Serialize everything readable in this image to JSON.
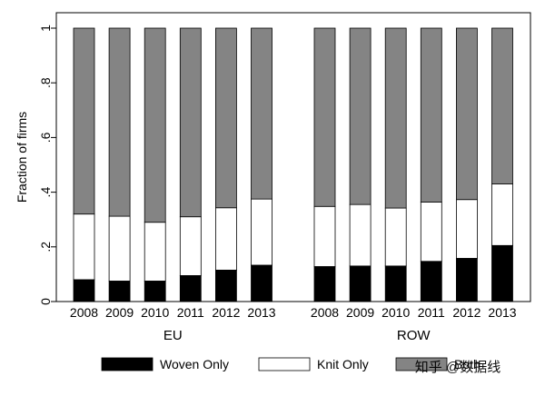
{
  "chart_data": {
    "type": "bar",
    "subtype": "stacked-100",
    "ylabel": "Fraction of firms",
    "ylim": [
      0,
      1
    ],
    "yticks": [
      0,
      0.2,
      0.4,
      0.6,
      0.8,
      1
    ],
    "ytick_labels": [
      "0",
      ".2",
      ".4",
      ".6",
      ".8",
      "1"
    ],
    "grid": false,
    "legend_position": "bottom",
    "groups": [
      {
        "name": "EU",
        "categories": [
          "2008",
          "2009",
          "2010",
          "2011",
          "2012",
          "2013"
        ],
        "series": [
          {
            "name": "Woven Only",
            "color": "#000000",
            "values": [
              0.08,
              0.075,
              0.075,
              0.095,
              0.115,
              0.133
            ]
          },
          {
            "name": "Knit Only",
            "color": "#ffffff",
            "values": [
              0.24,
              0.237,
              0.215,
              0.215,
              0.228,
              0.242
            ]
          },
          {
            "name": "Both",
            "color": "#848484",
            "values": [
              0.68,
              0.688,
              0.71,
              0.69,
              0.657,
              0.625
            ]
          }
        ]
      },
      {
        "name": "ROW",
        "categories": [
          "2008",
          "2009",
          "2010",
          "2011",
          "2012",
          "2013"
        ],
        "series": [
          {
            "name": "Woven Only",
            "color": "#000000",
            "values": [
              0.128,
              0.13,
              0.13,
              0.147,
              0.158,
              0.205
            ]
          },
          {
            "name": "Knit Only",
            "color": "#ffffff",
            "values": [
              0.22,
              0.225,
              0.212,
              0.217,
              0.215,
              0.225
            ]
          },
          {
            "name": "Both",
            "color": "#848484",
            "values": [
              0.652,
              0.645,
              0.658,
              0.636,
              0.627,
              0.57
            ]
          }
        ]
      }
    ]
  },
  "watermark": "知乎 @数据线"
}
